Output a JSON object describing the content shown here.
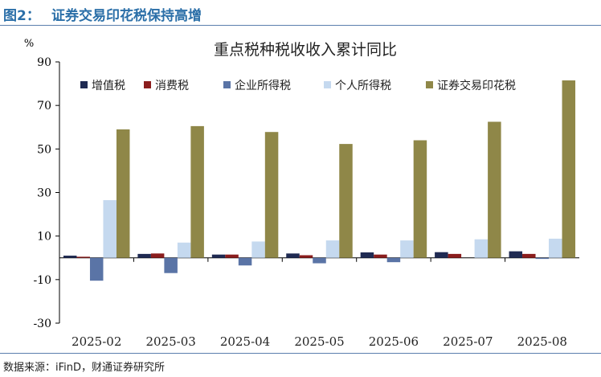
{
  "figure": {
    "label": "图2：",
    "title": "证券交易印花税保持高增"
  },
  "source": "数据来源：iFinD，财通证券研究所",
  "colors": {
    "header": "#2b6fa8",
    "rule": "#5b7fae"
  },
  "chart_data": {
    "type": "bar",
    "title": "重点税种税收收入累计同比",
    "ylabel": "%",
    "xlabel": "",
    "ylim": [
      -30,
      90
    ],
    "yticks": [
      -30,
      -10,
      10,
      30,
      50,
      70,
      90
    ],
    "grid": false,
    "legend_position": "top",
    "categories": [
      "2025-02",
      "2025-03",
      "2025-04",
      "2025-05",
      "2025-06",
      "2025-07",
      "2025-08"
    ],
    "series": [
      {
        "name": "增值税",
        "color": "#1f2a52",
        "values": [
          1.0,
          1.8,
          1.5,
          2.0,
          2.5,
          2.6,
          3.0
        ]
      },
      {
        "name": "消费税",
        "color": "#8b1d1d",
        "values": [
          0.5,
          2.0,
          1.5,
          1.2,
          1.5,
          1.8,
          1.8
        ]
      },
      {
        "name": "企业所得税",
        "color": "#5a74a6",
        "values": [
          -10.5,
          -7.0,
          -3.5,
          -2.5,
          -2.0,
          0.0,
          -0.5
        ]
      },
      {
        "name": "个人所得税",
        "color": "#c5d9ef",
        "values": [
          26.5,
          7.0,
          7.5,
          8.0,
          8.0,
          8.5,
          8.8
        ]
      },
      {
        "name": "证券交易印花税",
        "color": "#8f8748",
        "values": [
          59.0,
          60.5,
          57.8,
          52.3,
          54.0,
          62.5,
          81.5
        ]
      }
    ]
  }
}
